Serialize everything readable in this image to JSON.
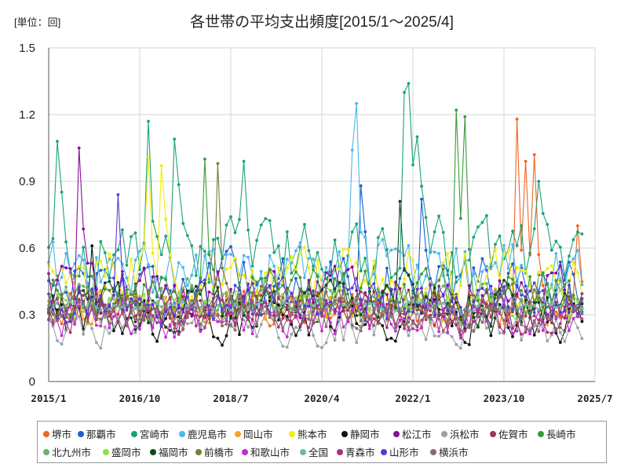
{
  "chart_data": {
    "type": "line",
    "title": "各世帯の平均支出頻度[2015/1～2025/4]",
    "unit_label": "[単位：回]",
    "xlabel": "",
    "ylabel": "",
    "x_ticks": [
      "2015/1",
      "2016/10",
      "2018/7",
      "2020/4",
      "2022/1",
      "2023/10",
      "2025/7"
    ],
    "y_ticks": [
      "0",
      "0.3",
      "0.6",
      "0.9",
      "1.2",
      "1.5"
    ],
    "ylim": [
      0,
      1.5
    ],
    "xlim": [
      "2015/1",
      "2025/7"
    ],
    "grid": true,
    "legend_position": "bottom",
    "series": [
      {
        "name": "堺市",
        "color": "#f26522",
        "mean": 0.33,
        "spread": 0.07,
        "peaks": [
          [
            "2024/1",
            1.18
          ],
          [
            "2024/3",
            0.99
          ],
          [
            "2024/5",
            1.02
          ],
          [
            "2025/3",
            0.7
          ]
        ]
      },
      {
        "name": "那覇市",
        "color": "#1f5fd6",
        "mean": 0.45,
        "spread": 0.11,
        "peaks": [
          [
            "2021/1",
            0.88
          ],
          [
            "2022/3",
            0.82
          ]
        ]
      },
      {
        "name": "宮崎市",
        "color": "#1aa37a",
        "mean": 0.58,
        "spread": 0.14,
        "peaks": [
          [
            "2015/3",
            1.08
          ],
          [
            "2016/12",
            1.17
          ],
          [
            "2017/6",
            1.09
          ],
          [
            "2021/11",
            1.3
          ],
          [
            "2021/12",
            1.34
          ],
          [
            "2022/2",
            1.1
          ],
          [
            "2018/10",
            0.99
          ],
          [
            "2024/6",
            0.9
          ]
        ]
      },
      {
        "name": "鹿児島市",
        "color": "#4db8ea",
        "mean": 0.5,
        "spread": 0.12,
        "peaks": [
          [
            "2020/12",
            1.25
          ],
          [
            "2020/11",
            1.04
          ]
        ]
      },
      {
        "name": "岡山市",
        "color": "#f5a623",
        "mean": 0.33,
        "spread": 0.07,
        "peaks": []
      },
      {
        "name": "熊本市",
        "color": "#f5ec0a",
        "mean": 0.46,
        "spread": 0.12,
        "peaks": [
          [
            "2016/12",
            1.01
          ],
          [
            "2017/3",
            0.97
          ]
        ]
      },
      {
        "name": "静岡市",
        "color": "#111111",
        "mean": 0.27,
        "spread": 0.08,
        "peaks": [
          [
            "2015/11",
            0.61
          ]
        ]
      },
      {
        "name": "松江市",
        "color": "#8a0e9a",
        "mean": 0.4,
        "spread": 0.1,
        "peaks": [
          [
            "2015/8",
            1.05
          ]
        ]
      },
      {
        "name": "浜松市",
        "color": "#9aa0a6",
        "mean": 0.24,
        "spread": 0.07,
        "peaks": []
      },
      {
        "name": "佐賀市",
        "color": "#9b3b4e",
        "mean": 0.34,
        "spread": 0.07,
        "peaks": []
      },
      {
        "name": "長崎市",
        "color": "#3a9a3a",
        "mean": 0.39,
        "spread": 0.1,
        "peaks": [
          [
            "2022/11",
            1.22
          ],
          [
            "2023/1",
            1.19
          ],
          [
            "2018/1",
            1.0
          ]
        ]
      },
      {
        "name": "北九州市",
        "color": "#6ab36a",
        "mean": 0.37,
        "spread": 0.08,
        "peaks": []
      },
      {
        "name": "盛岡市",
        "color": "#8ee04a",
        "mean": 0.34,
        "spread": 0.07,
        "peaks": []
      },
      {
        "name": "福岡市",
        "color": "#0c4a1a",
        "mean": 0.34,
        "spread": 0.09,
        "peaks": [
          [
            "2021/10",
            0.81
          ]
        ]
      },
      {
        "name": "前橋市",
        "color": "#7a7a3a",
        "mean": 0.34,
        "spread": 0.08,
        "peaks": [
          [
            "2018/4",
            0.98
          ]
        ]
      },
      {
        "name": "和歌山市",
        "color": "#c030d0",
        "mean": 0.28,
        "spread": 0.08,
        "peaks": []
      },
      {
        "name": "全国",
        "color": "#6fb8b0",
        "mean": 0.34,
        "spread": 0.02,
        "peaks": []
      },
      {
        "name": "青森市",
        "color": "#a8327a",
        "mean": 0.29,
        "spread": 0.07,
        "peaks": []
      },
      {
        "name": "山形市",
        "color": "#5a3ad6",
        "mean": 0.36,
        "spread": 0.09,
        "peaks": [
          [
            "2016/5",
            0.84
          ]
        ]
      },
      {
        "name": "横浜市",
        "color": "#8a6a6a",
        "mean": 0.29,
        "spread": 0.06,
        "peaks": []
      }
    ]
  }
}
